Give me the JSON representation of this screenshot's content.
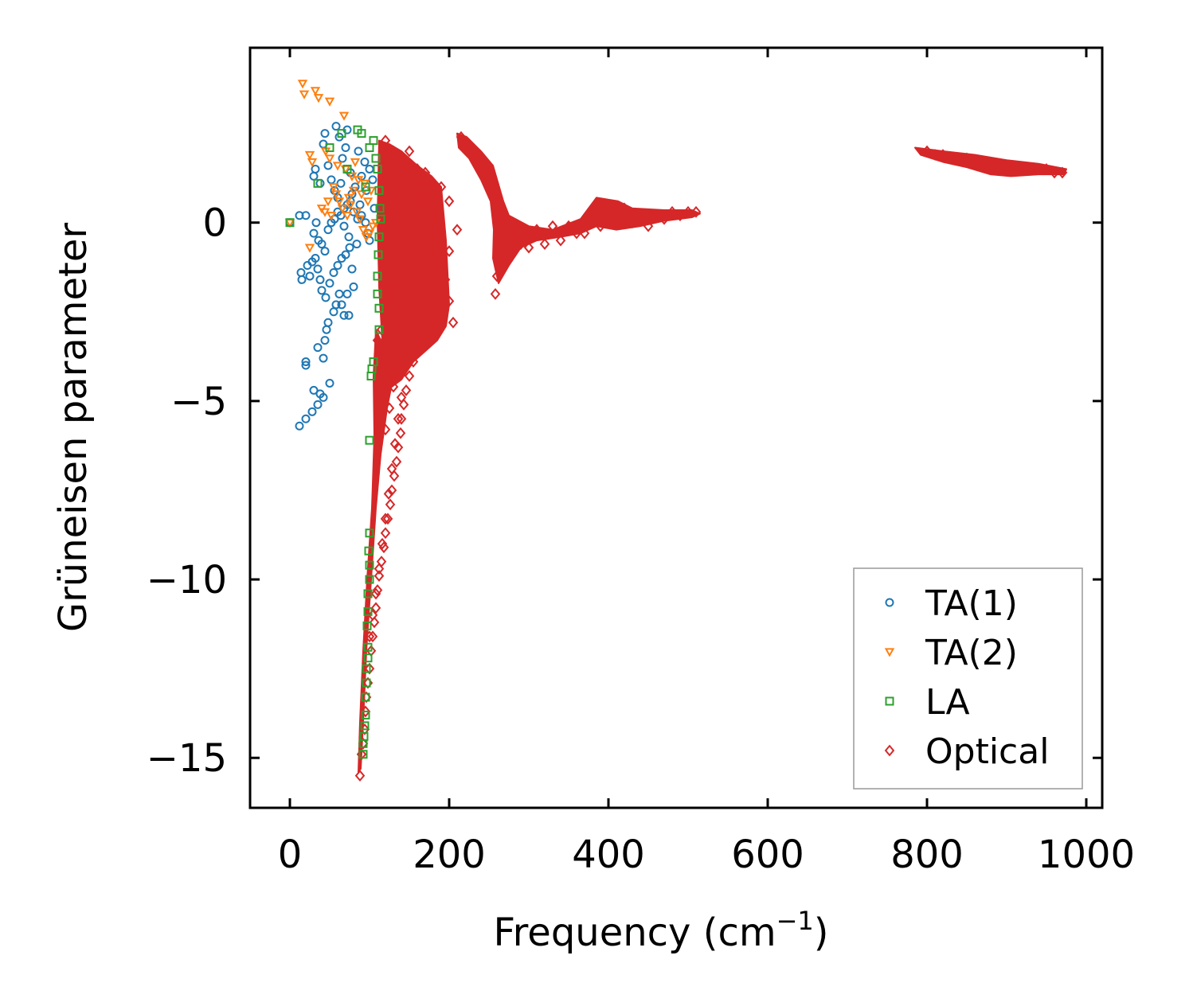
{
  "chart_data": {
    "type": "scatter",
    "title": "",
    "xlabel": "Frequency (cm",
    "xlabel_sup": "−1",
    "xlabel_close": ")",
    "ylabel": "Grüneisen parameter",
    "xlim": [
      -50,
      1020
    ],
    "ylim": [
      -16.4,
      4.9
    ],
    "xticks": [
      0,
      200,
      400,
      600,
      800,
      1000
    ],
    "xtick_labels": [
      "0",
      "200",
      "400",
      "600",
      "800",
      "1000"
    ],
    "yticks": [
      -15,
      -10,
      -5,
      0
    ],
    "ytick_labels": [
      "−15",
      "−10",
      "−5",
      "0"
    ],
    "grid": false,
    "legend_position": "bottom-right",
    "series": [
      {
        "name": "TA(1)",
        "marker": "circle",
        "color": "#1f77b4",
        "points": [
          [
            0,
            0
          ],
          [
            12,
            0.2
          ],
          [
            20,
            0.2
          ],
          [
            12,
            -5.7
          ],
          [
            20,
            -5.5
          ],
          [
            28,
            -5.3
          ],
          [
            35,
            -5.1
          ],
          [
            42,
            -4.9
          ],
          [
            50,
            -4.5
          ],
          [
            30,
            -4.7
          ],
          [
            38,
            -4.8
          ],
          [
            20,
            -3.9
          ],
          [
            20,
            -4.0
          ],
          [
            35,
            -3.5
          ],
          [
            42,
            -3.8
          ],
          [
            44,
            -3.3
          ],
          [
            46,
            -3.0
          ],
          [
            48,
            -2.8
          ],
          [
            55,
            -2.5
          ],
          [
            58,
            -2.3
          ],
          [
            62,
            -2.0
          ],
          [
            65,
            -2.3
          ],
          [
            68,
            -2.6
          ],
          [
            72,
            -2.0
          ],
          [
            74,
            -2.6
          ],
          [
            14,
            -1.4
          ],
          [
            15,
            -1.6
          ],
          [
            22,
            -1.2
          ],
          [
            25,
            -1.5
          ],
          [
            28,
            -1.1
          ],
          [
            32,
            -1.0
          ],
          [
            35,
            -1.3
          ],
          [
            38,
            -1.6
          ],
          [
            40,
            -1.9
          ],
          [
            45,
            -2.1
          ],
          [
            50,
            -1.7
          ],
          [
            55,
            -1.4
          ],
          [
            60,
            -1.2
          ],
          [
            65,
            -1.0
          ],
          [
            70,
            -0.9
          ],
          [
            75,
            -0.7
          ],
          [
            78,
            -1.3
          ],
          [
            80,
            -1.8
          ],
          [
            30,
            -0.3
          ],
          [
            33,
            0.0
          ],
          [
            36,
            -0.5
          ],
          [
            40,
            -0.6
          ],
          [
            44,
            -0.8
          ],
          [
            48,
            -0.2
          ],
          [
            52,
            0.0
          ],
          [
            56,
            0.1
          ],
          [
            60,
            0.3
          ],
          [
            64,
            0.2
          ],
          [
            68,
            0.4
          ],
          [
            72,
            0.5
          ],
          [
            76,
            0.6
          ],
          [
            80,
            0.3
          ],
          [
            85,
            0.1
          ],
          [
            90,
            0.2
          ],
          [
            95,
            0.0
          ],
          [
            98,
            -0.3
          ],
          [
            100,
            -0.5
          ],
          [
            30,
            1.3
          ],
          [
            32,
            1.5
          ],
          [
            38,
            1.1
          ],
          [
            42,
            2.2
          ],
          [
            44,
            2.5
          ],
          [
            48,
            1.6
          ],
          [
            52,
            1.2
          ],
          [
            56,
            0.9
          ],
          [
            58,
            2.7
          ],
          [
            62,
            2.4
          ],
          [
            66,
            1.8
          ],
          [
            70,
            2.1
          ],
          [
            72,
            2.6
          ],
          [
            76,
            1.4
          ],
          [
            78,
            0.8
          ],
          [
            82,
            1.0
          ],
          [
            86,
            2.0
          ],
          [
            90,
            1.3
          ],
          [
            94,
            1.7
          ],
          [
            96,
            0.9
          ],
          [
            100,
            1.5
          ],
          [
            104,
            1.2
          ],
          [
            106,
            0.4
          ],
          [
            60,
            0.7
          ],
          [
            64,
            1.1
          ],
          [
            68,
            -0.1
          ],
          [
            74,
            -0.4
          ],
          [
            84,
            -0.6
          ],
          [
            88,
            0.5
          ]
        ]
      },
      {
        "name": "TA(2)",
        "marker": "triangle-down",
        "color": "#ff7f0e",
        "points": [
          [
            0,
            0
          ],
          [
            16,
            3.9
          ],
          [
            18,
            3.6
          ],
          [
            32,
            3.7
          ],
          [
            36,
            3.5
          ],
          [
            50,
            3.4
          ],
          [
            68,
            3.0
          ],
          [
            25,
            1.9
          ],
          [
            28,
            1.7
          ],
          [
            45,
            2.0
          ],
          [
            50,
            1.8
          ],
          [
            60,
            1.6
          ],
          [
            70,
            1.5
          ],
          [
            78,
            1.3
          ],
          [
            82,
            1.7
          ],
          [
            86,
            1.2
          ],
          [
            55,
            1.0
          ],
          [
            58,
            0.8
          ],
          [
            62,
            0.6
          ],
          [
            66,
            0.4
          ],
          [
            72,
            0.2
          ],
          [
            76,
            0.5
          ],
          [
            80,
            0.9
          ],
          [
            84,
            0.3
          ],
          [
            88,
            0.1
          ],
          [
            92,
            -0.2
          ],
          [
            96,
            -0.4
          ],
          [
            100,
            -0.3
          ],
          [
            104,
            -0.1
          ],
          [
            108,
            0.0
          ],
          [
            40,
            0.4
          ],
          [
            44,
            0.3
          ],
          [
            48,
            0.6
          ],
          [
            52,
            0.2
          ],
          [
            25,
            -0.7
          ],
          [
            74,
            0.7
          ],
          [
            90,
            0.8
          ],
          [
            94,
            1.1
          ],
          [
            98,
            0.6
          ],
          [
            102,
            0.9
          ]
        ]
      },
      {
        "name": "LA",
        "marker": "square",
        "color": "#2ca02c",
        "points": [
          [
            0,
            0
          ],
          [
            35,
            1.1
          ],
          [
            50,
            2.1
          ],
          [
            65,
            2.5
          ],
          [
            72,
            1.5
          ],
          [
            85,
            2.6
          ],
          [
            90,
            2.5
          ],
          [
            95,
            1.0
          ],
          [
            100,
            2.1
          ],
          [
            105,
            2.3
          ],
          [
            108,
            1.8
          ],
          [
            110,
            1.5
          ],
          [
            112,
            0.9
          ],
          [
            113,
            0.4
          ],
          [
            114,
            0.1
          ],
          [
            112,
            -0.4
          ],
          [
            111,
            -0.9
          ],
          [
            110,
            -1.5
          ],
          [
            110,
            -2.0
          ],
          [
            112,
            -2.4
          ],
          [
            112,
            -3.0
          ],
          [
            105,
            -3.9
          ],
          [
            103,
            -4.1
          ],
          [
            102,
            -4.3
          ],
          [
            100,
            -6.1
          ],
          [
            100,
            -8.7
          ],
          [
            100,
            -9.6
          ],
          [
            100,
            -10.0
          ],
          [
            98,
            -10.4
          ],
          [
            98,
            -10.9
          ],
          [
            98,
            -11.9
          ],
          [
            98,
            -12.2
          ],
          [
            96,
            -12.9
          ],
          [
            95,
            -13.3
          ],
          [
            95,
            -13.8
          ],
          [
            94,
            -14.1
          ],
          [
            93,
            -14.4
          ],
          [
            92,
            -14.6
          ],
          [
            92,
            -14.9
          ],
          [
            96,
            -12.5
          ],
          [
            97,
            -11.3
          ],
          [
            99,
            -9.2
          ]
        ]
      },
      {
        "name": "Optical",
        "marker": "diamond",
        "color": "#d62728",
        "points": [
          [
            88,
            -15.5
          ],
          [
            90,
            -14.9
          ],
          [
            92,
            -14.6
          ],
          [
            94,
            -14.2
          ],
          [
            95,
            -13.7
          ],
          [
            96,
            -13.3
          ],
          [
            98,
            -12.9
          ],
          [
            100,
            -12.5
          ],
          [
            102,
            -12.0
          ],
          [
            104,
            -11.6
          ],
          [
            106,
            -11.2
          ],
          [
            108,
            -10.8
          ],
          [
            110,
            -10.3
          ],
          [
            112,
            -9.9
          ],
          [
            115,
            -9.5
          ],
          [
            118,
            -9.1
          ],
          [
            120,
            -8.7
          ],
          [
            123,
            -8.3
          ],
          [
            126,
            -7.9
          ],
          [
            128,
            -7.5
          ],
          [
            131,
            -7.1
          ],
          [
            134,
            -6.7
          ],
          [
            136,
            -6.3
          ],
          [
            139,
            -5.9
          ],
          [
            140,
            -5.5
          ],
          [
            143,
            -5.1
          ],
          [
            146,
            -4.7
          ],
          [
            150,
            -4.3
          ],
          [
            155,
            -3.9
          ],
          [
            160,
            -3.5
          ],
          [
            100,
            -11.6
          ],
          [
            104,
            -11.0
          ],
          [
            108,
            -10.4
          ],
          [
            112,
            -9.7
          ],
          [
            116,
            -9.0
          ],
          [
            120,
            -8.3
          ],
          [
            124,
            -7.6
          ],
          [
            128,
            -6.9
          ],
          [
            132,
            -6.2
          ],
          [
            136,
            -5.5
          ],
          [
            140,
            -4.9
          ],
          [
            120,
            -5.8
          ],
          [
            125,
            -5.2
          ],
          [
            130,
            -4.6
          ],
          [
            135,
            -4.1
          ],
          [
            140,
            -3.6
          ],
          [
            110,
            -3.3
          ],
          [
            115,
            -3.0
          ],
          [
            120,
            -2.6
          ],
          [
            125,
            -2.2
          ],
          [
            130,
            -1.8
          ],
          [
            135,
            -1.4
          ],
          [
            140,
            -1.0
          ],
          [
            145,
            -0.6
          ],
          [
            150,
            -0.2
          ],
          [
            155,
            0.2
          ],
          [
            160,
            0.6
          ],
          [
            165,
            1.0
          ],
          [
            170,
            1.4
          ],
          [
            175,
            0.8
          ],
          [
            180,
            0.2
          ],
          [
            185,
            -0.4
          ],
          [
            190,
            -1.0
          ],
          [
            195,
            -1.6
          ],
          [
            200,
            -2.2
          ],
          [
            205,
            -2.8
          ],
          [
            120,
            2.3
          ],
          [
            130,
            2.0
          ],
          [
            140,
            1.6
          ],
          [
            150,
            1.2
          ],
          [
            160,
            0.8
          ],
          [
            170,
            0.4
          ],
          [
            180,
            0.0
          ],
          [
            190,
            -0.4
          ],
          [
            200,
            -0.8
          ],
          [
            150,
            2.0
          ],
          [
            160,
            1.5
          ],
          [
            170,
            1.0
          ],
          [
            180,
            0.5
          ],
          [
            190,
            1.0
          ],
          [
            200,
            0.6
          ],
          [
            210,
            -0.2
          ],
          [
            215,
            2.4
          ],
          [
            225,
            2.2
          ],
          [
            235,
            1.9
          ],
          [
            245,
            1.5
          ],
          [
            255,
            1.1
          ],
          [
            260,
            0.7
          ],
          [
            265,
            0.3
          ],
          [
            270,
            -0.1
          ],
          [
            280,
            -0.4
          ],
          [
            290,
            -0.6
          ],
          [
            300,
            -0.7
          ],
          [
            320,
            -0.6
          ],
          [
            340,
            -0.5
          ],
          [
            360,
            -0.3
          ],
          [
            380,
            0.0
          ],
          [
            400,
            0.5
          ],
          [
            420,
            0.4
          ],
          [
            440,
            0.1
          ],
          [
            460,
            0.2
          ],
          [
            480,
            0.3
          ],
          [
            500,
            0.3
          ],
          [
            510,
            0.3
          ],
          [
            260,
            -1.5
          ],
          [
            258,
            -2.0
          ],
          [
            262,
            -1.0
          ],
          [
            270,
            -0.8
          ],
          [
            285,
            -0.3
          ],
          [
            310,
            -0.2
          ],
          [
            330,
            -0.1
          ],
          [
            350,
            -0.1
          ],
          [
            370,
            -0.3
          ],
          [
            390,
            -0.1
          ],
          [
            410,
            0.2
          ],
          [
            430,
            0.0
          ],
          [
            450,
            -0.1
          ],
          [
            470,
            0.1
          ],
          [
            490,
            0.2
          ],
          [
            800,
            2.0
          ],
          [
            820,
            1.9
          ],
          [
            840,
            1.8
          ],
          [
            860,
            1.7
          ],
          [
            880,
            1.6
          ],
          [
            900,
            1.5
          ],
          [
            920,
            1.5
          ],
          [
            940,
            1.5
          ],
          [
            960,
            1.4
          ],
          [
            970,
            1.4
          ],
          [
            810,
            1.9
          ],
          [
            850,
            1.8
          ],
          [
            890,
            1.6
          ],
          [
            930,
            1.5
          ],
          [
            950,
            1.5
          ]
        ]
      }
    ]
  }
}
